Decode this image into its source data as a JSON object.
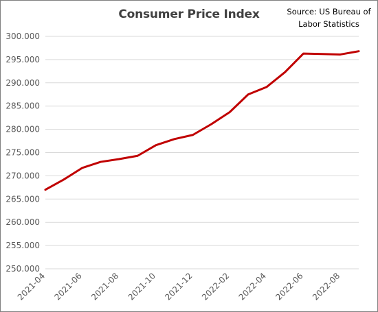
{
  "chart_data": {
    "type": "line",
    "title": "Consumer Price Index",
    "annotation_lines": [
      "Source: US Bureau of",
      "Labor Statistics"
    ],
    "xlabel": "",
    "ylabel": "",
    "ylim": [
      250,
      300
    ],
    "y_ticks": [
      "250.000",
      "255.000",
      "260.000",
      "265.000",
      "270.000",
      "275.000",
      "280.000",
      "285.000",
      "290.000",
      "295.000",
      "300.000"
    ],
    "x_tick_labels": [
      "2021-04",
      "2021-06",
      "2021-08",
      "2021-10",
      "2021-12",
      "2022-02",
      "2022-04",
      "2022-06",
      "2022-08"
    ],
    "grid": "horizontal",
    "line_color": "#c00000",
    "series": [
      {
        "x": [
          "2021-04",
          "2021-05",
          "2021-06",
          "2021-07",
          "2021-08",
          "2021-09",
          "2021-10",
          "2021-11",
          "2021-12",
          "2022-01",
          "2022-02",
          "2022-03",
          "2022-04",
          "2022-05",
          "2022-06",
          "2022-07",
          "2022-08",
          "2022-09"
        ],
        "values": [
          267.0,
          269.2,
          271.7,
          273.0,
          273.6,
          274.3,
          276.6,
          277.9,
          278.8,
          281.1,
          283.7,
          287.5,
          289.1,
          292.3,
          296.3,
          296.2,
          296.1,
          296.8
        ]
      }
    ]
  }
}
